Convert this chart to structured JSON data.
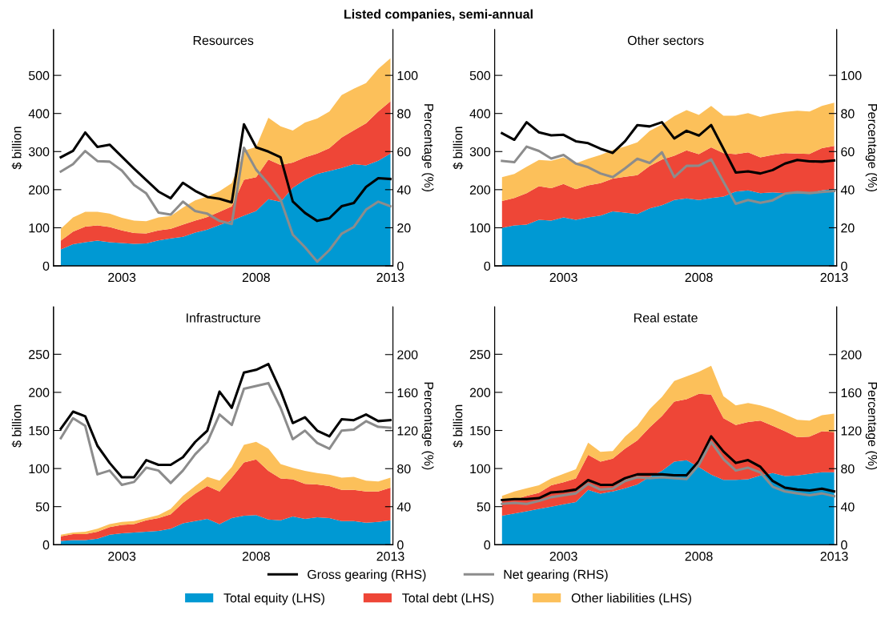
{
  "chart_data": [
    {
      "type": "area",
      "title": "Listed companies, semi-annual",
      "subtitle": "Resources",
      "ylabel": "$ billion",
      "y2label": "Percentage (%)",
      "stacked": true,
      "legend": "bottom",
      "categories": [
        null,
        null,
        null,
        null,
        null,
        "2003",
        null,
        null,
        null,
        null,
        null,
        null,
        null,
        null,
        null,
        null,
        "2008",
        null,
        null,
        null,
        null,
        null,
        null,
        null,
        null,
        null,
        null,
        "2013"
      ],
      "ylim": [
        0,
        620
      ],
      "yticks": [
        0,
        100,
        200,
        300,
        400,
        500
      ],
      "y2lim": [
        0,
        124
      ],
      "y2ticks": [
        0,
        20,
        40,
        60,
        80,
        100
      ],
      "series": [
        {
          "name": "Total equity (LHS)",
          "color": "#0099d3",
          "values": [
            43,
            57,
            62,
            66,
            62,
            60,
            58,
            59,
            67,
            72,
            76,
            87,
            95,
            107,
            119,
            132,
            144,
            175,
            168,
            205,
            226,
            241,
            249,
            257,
            267,
            264,
            276,
            295
          ]
        },
        {
          "name": "Total debt (LHS)",
          "color": "#ee4637",
          "values": [
            23,
            33,
            41,
            40,
            40,
            33,
            28,
            26,
            26,
            25,
            32,
            32,
            33,
            35,
            37,
            94,
            89,
            104,
            97,
            66,
            59,
            54,
            60,
            80,
            89,
            110,
            129,
            137
          ]
        },
        {
          "name": "Other liabilities (LHS)",
          "color": "#fcc05a",
          "values": [
            31,
            37,
            39,
            36,
            35,
            33,
            33,
            32,
            34,
            34,
            45,
            53,
            54,
            54,
            61,
            76,
            79,
            110,
            101,
            84,
            91,
            92,
            96,
            111,
            109,
            106,
            112,
            113
          ]
        },
        {
          "name": "Gross gearing (RHS)",
          "type": "line",
          "axis": "y2",
          "color": "#000000",
          "values": [
            57,
            60.4,
            70,
            62.4,
            63.6,
            57.3,
            51,
            45,
            39,
            35.5,
            43.6,
            39.4,
            36.2,
            35.2,
            33.3,
            74.3,
            62.2,
            60,
            57,
            33.8,
            27.8,
            23.6,
            25,
            31.3,
            33,
            41.4,
            46,
            45.6
          ]
        },
        {
          "name": "Net gearing (RHS)",
          "type": "line",
          "axis": "y2",
          "color": "#8c8c8c",
          "values": [
            49.5,
            53.4,
            60.3,
            55,
            54.7,
            50,
            42.5,
            38,
            28,
            26.9,
            33.7,
            28.8,
            27.4,
            23.6,
            22,
            62,
            50.5,
            43.2,
            34.8,
            16.4,
            9.8,
            2.2,
            8.3,
            16.9,
            20.4,
            29.5,
            33.7,
            31.3
          ]
        }
      ]
    },
    {
      "type": "area",
      "subtitle": "Other sectors",
      "ylabel": "$ billion",
      "y2label": "Percentage (%)",
      "stacked": true,
      "categories": [
        null,
        null,
        null,
        null,
        null,
        "2003",
        null,
        null,
        null,
        null,
        null,
        null,
        null,
        null,
        null,
        null,
        "2008",
        null,
        null,
        null,
        null,
        null,
        null,
        null,
        null,
        null,
        null,
        "2013"
      ],
      "ylim": [
        0,
        620
      ],
      "yticks": [
        0,
        100,
        200,
        300,
        400,
        500
      ],
      "y2lim": [
        0,
        124
      ],
      "y2ticks": [
        0,
        20,
        40,
        60,
        80,
        100
      ],
      "series": [
        {
          "color": "#0099d3",
          "values": [
            100,
            106,
            108,
            121,
            119,
            127,
            121,
            127,
            132,
            143,
            140,
            136,
            151,
            159,
            173,
            177,
            173,
            178,
            182,
            195,
            198,
            191,
            193,
            191,
            191,
            191,
            198,
            202
          ]
        },
        {
          "color": "#ee4637",
          "values": [
            70,
            72,
            83,
            88,
            85,
            88,
            80,
            84,
            85,
            86,
            94,
            102,
            111,
            120,
            116,
            126,
            120,
            133,
            114,
            98,
            100,
            94,
            98,
            105,
            104,
            103,
            111,
            113
          ]
        },
        {
          "color": "#fcc05a",
          "values": [
            63,
            63,
            69,
            69,
            72,
            70,
            68,
            70,
            74,
            75,
            79,
            86,
            92,
            92,
            104,
            106,
            103,
            109,
            98,
            101,
            103,
            106,
            108,
            108,
            112,
            111,
            111,
            113
          ]
        },
        {
          "type": "line",
          "axis": "y2",
          "color": "#000000",
          "values": [
            69.6,
            66.2,
            75.4,
            70.1,
            68.5,
            68.8,
            65.4,
            64.4,
            61.5,
            59.3,
            65.4,
            73.9,
            73.2,
            75.4,
            66.9,
            70.9,
            68.4,
            73.9,
            61.5,
            49,
            49.6,
            48.5,
            50.3,
            53.7,
            55.6,
            54.9,
            54.7,
            55.3
          ]
        },
        {
          "type": "line",
          "axis": "y2",
          "color": "#8c8c8c",
          "values": [
            55.1,
            54.4,
            62.6,
            60.3,
            56.3,
            58.2,
            53.7,
            51.8,
            48.5,
            46.6,
            51.2,
            56.2,
            54,
            59.6,
            46.6,
            52.5,
            52.6,
            55.9,
            44.1,
            32.6,
            34.6,
            33.1,
            34.4,
            37.9,
            38.7,
            38.2,
            38.8,
            39.3
          ]
        }
      ]
    },
    {
      "type": "area",
      "subtitle": "Infrastructure",
      "ylabel": "$ billion",
      "y2label": "Percentage (%)",
      "stacked": true,
      "categories": [
        null,
        null,
        null,
        null,
        null,
        "2003",
        null,
        null,
        null,
        null,
        null,
        null,
        null,
        null,
        null,
        null,
        "2008",
        null,
        null,
        null,
        null,
        null,
        null,
        null,
        null,
        null,
        null,
        "2013"
      ],
      "ylim": [
        0,
        312
      ],
      "yticks": [
        0,
        50,
        100,
        150,
        200,
        250
      ],
      "y2lim": [
        0,
        250
      ],
      "y2ticks": [
        0,
        40,
        80,
        120,
        160,
        200
      ],
      "series": [
        {
          "color": "#0099d3",
          "values": [
            5,
            6,
            6,
            8,
            13,
            15,
            16,
            17,
            18,
            21,
            28,
            31,
            34,
            27,
            35,
            38,
            39,
            33,
            32,
            37,
            34,
            36,
            35,
            31,
            31,
            29,
            30,
            32
          ]
        },
        {
          "color": "#ee4637",
          "values": [
            6,
            8,
            8,
            9,
            10,
            11,
            11,
            15,
            17,
            19,
            27,
            36,
            43,
            43,
            53,
            70,
            73,
            64,
            55,
            49,
            46,
            43,
            42,
            41,
            41,
            41,
            40,
            43
          ]
        },
        {
          "color": "#fcc05a",
          "values": [
            2,
            2,
            3,
            4,
            4,
            4,
            4,
            3,
            4,
            7,
            9,
            10,
            12,
            14,
            14,
            23,
            23,
            29,
            19,
            15,
            17,
            15,
            15,
            16,
            17,
            14,
            13,
            13
          ]
        },
        {
          "type": "line",
          "axis": "y2",
          "color": "#000000",
          "values": [
            122,
            140,
            135,
            104,
            86,
            71,
            71,
            89,
            84,
            84,
            92,
            108,
            120,
            161,
            144,
            181,
            184,
            190,
            162,
            128,
            134,
            120,
            114,
            132,
            131,
            137,
            130,
            131
          ]
        },
        {
          "type": "line",
          "axis": "y2",
          "color": "#8c8c8c",
          "values": [
            112,
            133,
            125,
            74,
            78,
            63,
            66,
            81,
            78,
            65,
            78,
            95,
            108,
            137,
            126,
            164,
            167,
            170,
            144,
            111,
            120,
            107,
            101,
            120,
            121,
            130,
            124,
            123
          ]
        }
      ]
    },
    {
      "type": "area",
      "subtitle": "Real estate",
      "ylabel": "$ billion",
      "y2label": "Percentage (%)",
      "stacked": true,
      "categories": [
        null,
        null,
        null,
        null,
        null,
        "2003",
        null,
        null,
        null,
        null,
        null,
        null,
        null,
        null,
        null,
        null,
        "2008",
        null,
        null,
        null,
        null,
        null,
        null,
        null,
        null,
        null,
        null,
        "2013"
      ],
      "ylim": [
        0,
        312
      ],
      "yticks": [
        0,
        50,
        100,
        150,
        200,
        250
      ],
      "y2lim": [
        0,
        250
      ],
      "y2ticks": [
        0,
        40,
        80,
        120,
        160,
        200
      ],
      "series": [
        {
          "color": "#0099d3",
          "values": [
            38,
            41,
            44,
            47,
            50,
            53,
            56,
            72,
            67,
            70,
            74,
            79,
            89,
            97,
            109,
            111,
            102,
            92,
            85,
            85,
            86,
            91,
            94,
            90,
            91,
            93,
            95,
            95
          ]
        },
        {
          "color": "#ee4637",
          "values": [
            20,
            18,
            20,
            21,
            28,
            29,
            31,
            46,
            42,
            43,
            52,
            58,
            65,
            72,
            79,
            80,
            96,
            105,
            81,
            72,
            75,
            72,
            62,
            59,
            50,
            49,
            54,
            53
          ]
        },
        {
          "color": "#fcc05a",
          "values": [
            6,
            11,
            10,
            10,
            9,
            11,
            12,
            16,
            13,
            10,
            16,
            19,
            24,
            25,
            27,
            30,
            29,
            38,
            29,
            26,
            25,
            20,
            22,
            22,
            23,
            21,
            21,
            24
          ]
        },
        {
          "type": "line",
          "axis": "y2",
          "color": "#000000",
          "values": [
            47,
            48,
            48,
            49,
            55,
            56,
            58,
            68,
            63,
            63,
            70,
            74,
            74,
            74,
            73,
            73,
            88,
            114,
            98,
            86,
            89,
            82,
            67,
            60,
            58,
            57,
            59,
            56
          ]
        },
        {
          "type": "line",
          "axis": "y2",
          "color": "#8c8c8c",
          "values": [
            43,
            44,
            43,
            46,
            50,
            52,
            54,
            64,
            58,
            59,
            67,
            71,
            70,
            71,
            70,
            69,
            84,
            108,
            90,
            78,
            81,
            76,
            61,
            56,
            54,
            52,
            54,
            51
          ]
        }
      ]
    }
  ]
}
